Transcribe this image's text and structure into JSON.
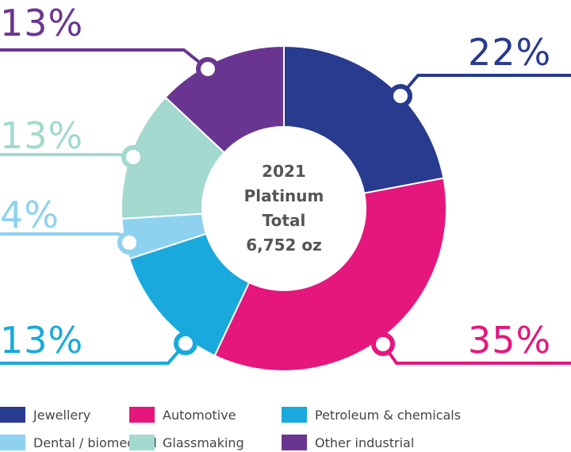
{
  "chart_data": {
    "type": "pie",
    "center_label": [
      "2021",
      "Platinum",
      "Total",
      "6,752 oz"
    ],
    "slices": [
      {
        "name": "Jewellery",
        "value": 22,
        "label": "22%",
        "color": "#283b8e"
      },
      {
        "name": "Automotive",
        "value": 35,
        "label": "35%",
        "color": "#e5167c"
      },
      {
        "name": "Petroleum & chemicals",
        "value": 13,
        "label": "13%",
        "color": "#1aa9dc"
      },
      {
        "name": "Dental / biomedical",
        "value": 4,
        "label": "4%",
        "color": "#8ed2f0"
      },
      {
        "name": "Glassmaking",
        "value": 13,
        "label": "13%",
        "color": "#a3d9cf"
      },
      {
        "name": "Other industrial",
        "value": 13,
        "label": "13%",
        "color": "#6a3590"
      }
    ],
    "legend": [
      "Jewellery",
      "Automotive",
      "Petroleum & chemicals",
      "Dental / biomedical",
      "Glassmaking",
      "Other industrial"
    ],
    "legend_position": "bottom"
  }
}
